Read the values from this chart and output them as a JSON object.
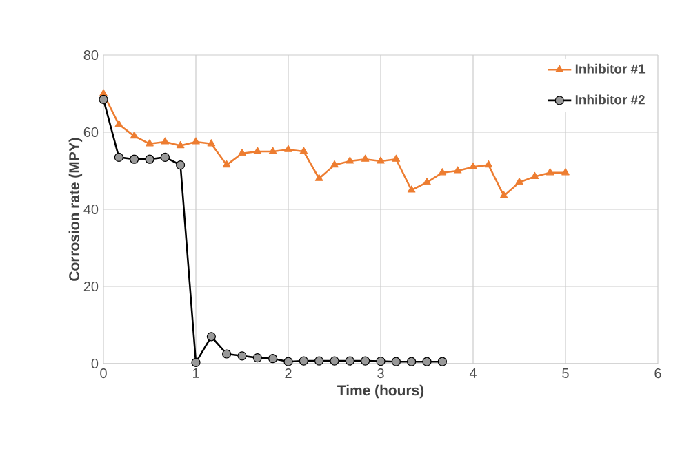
{
  "chart_data": {
    "type": "line",
    "xlabel": "Time (hours)",
    "ylabel": "Corrosion rate (MPY)",
    "xlim": [
      0,
      6
    ],
    "xticks": [
      0,
      1,
      2,
      3,
      4,
      5,
      6
    ],
    "ylim": [
      0,
      80
    ],
    "yticks": [
      0,
      20,
      40,
      60,
      80
    ],
    "grid": true,
    "legend": "top right",
    "line_style": "solid",
    "series": [
      {
        "name": "Inhibitor #1",
        "color": "#ed7d31",
        "marker": "triangle",
        "x": [
          0,
          0.167,
          0.333,
          0.5,
          0.667,
          0.833,
          1,
          1.167,
          1.333,
          1.5,
          1.667,
          1.833,
          2,
          2.167,
          2.333,
          2.5,
          2.667,
          2.833,
          3,
          3.167,
          3.333,
          3.5,
          3.667,
          3.833,
          4,
          4.167,
          4.333,
          4.5,
          4.667,
          4.833,
          5
        ],
        "values": [
          70,
          62,
          59,
          57,
          57.5,
          56.5,
          57.5,
          57,
          51.5,
          54.5,
          55,
          55,
          55.5,
          55,
          48,
          51.5,
          52.5,
          53,
          52.5,
          53,
          45,
          47,
          49.5,
          50,
          51,
          51.5,
          43.5,
          47,
          48.5,
          49.5,
          49.5
        ]
      },
      {
        "name": "Inhibitor #2",
        "color": "#000000",
        "marker": "circle",
        "x": [
          0,
          0.167,
          0.333,
          0.5,
          0.667,
          0.833,
          1,
          1.167,
          1.333,
          1.5,
          1.667,
          1.833,
          2,
          2.167,
          2.333,
          2.5,
          2.667,
          2.833,
          3,
          3.167,
          3.333,
          3.5,
          3.667
        ],
        "values": [
          68.5,
          53.5,
          53,
          53,
          53.5,
          51.5,
          0.3,
          7,
          2.5,
          2,
          1.5,
          1.3,
          0.5,
          0.7,
          0.7,
          0.7,
          0.7,
          0.7,
          0.6,
          0.5,
          0.5,
          0.5,
          0.5
        ]
      }
    ]
  }
}
